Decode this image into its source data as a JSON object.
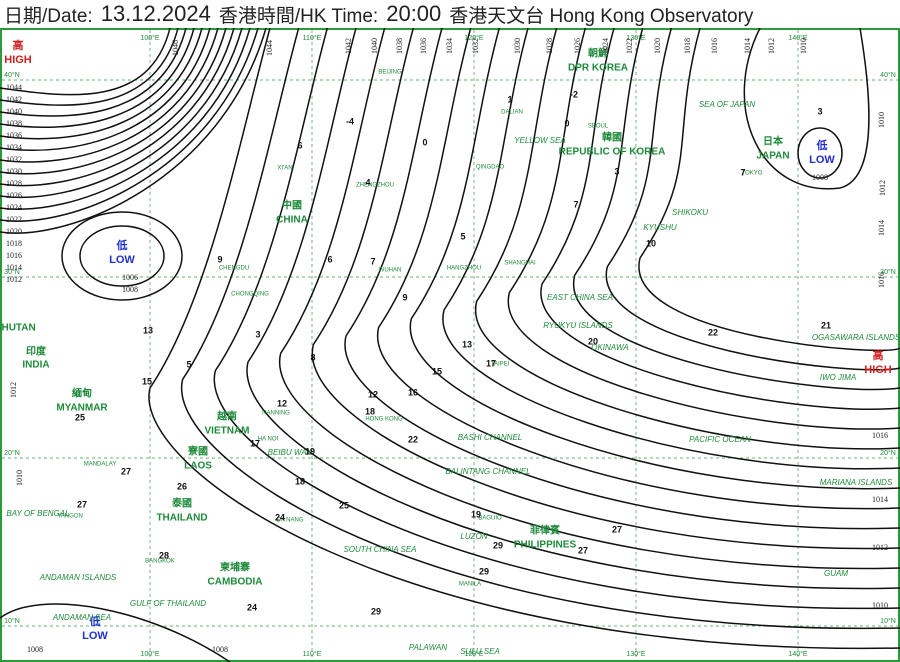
{
  "header": {
    "date_label": "日期/Date:",
    "date": "13.12.2024",
    "time_label": "香港時間/HK Time:",
    "time": "20:00",
    "source": "香港天文台 Hong Kong Observatory"
  },
  "grid_labels": {
    "lon": [
      "100°E",
      "110°E",
      "120°E",
      "130°E",
      "140°E"
    ],
    "lat": [
      "40°N",
      "30°N",
      "20°N",
      "10°N"
    ]
  },
  "pressure_systems": [
    {
      "zh": "高",
      "en": "HIGH"
    },
    {
      "zh": "低",
      "en": "LOW"
    },
    {
      "zh": "低",
      "en": "LOW"
    },
    {
      "zh": "高",
      "en": "HIGH"
    },
    {
      "zh": "低",
      "en": "LOW"
    }
  ],
  "countries": [
    "DPR KOREA",
    "REPUBLIC OF KOREA",
    "JAPAN",
    "CHINA",
    "INDIA",
    "MYANMAR",
    "VIETNAM",
    "LAOS",
    "THAILAND",
    "CAMBODIA",
    "PHILIPPINES",
    "BHUTAN"
  ],
  "countries_zh": [
    "朝鮮",
    "韓國",
    "日本",
    "中國",
    "印度",
    "緬甸",
    "越南",
    "寮國",
    "泰國",
    "柬埔寨",
    "菲律賓"
  ],
  "seas": [
    "YELLOW SEA",
    "EAST CHINA SEA",
    "SEA OF JAPAN",
    "PACIFIC OCEAN",
    "SOUTH CHINA SEA",
    "BAY OF BENGAL",
    "GULF OF THAILAND",
    "BASHI CHANNEL",
    "BALINTANG CHANNEL",
    "SULU SEA",
    "ANDAMAN SEA",
    "ANDAMAN ISLANDS",
    "RYUKYU ISLANDS",
    "OGASAWARA ISLANDS",
    "MARIANA ISLANDS",
    "IWO JIMA",
    "OKINAWA",
    "KYUSHU",
    "SHIKOKU",
    "BEIBU WAN",
    "LUZON",
    "PALAWAN",
    "GUAM"
  ],
  "cities": [
    "BEIJING",
    "SHANGHAI",
    "HONG KONG",
    "TAIPEI",
    "SEOUL",
    "TOKYO",
    "DALIAN",
    "QINGDAO",
    "WUHAN",
    "CHENGDU",
    "CHONGQING",
    "NANNING",
    "HA NOI",
    "BANGKOK",
    "MANILA",
    "YANGON",
    "MANDALAY",
    "ZHENGZHOU",
    "XI'AN",
    "HANGZHOU",
    "DA NANG",
    "BAGUIO"
  ],
  "isobar_labels": [
    "1046",
    "1044",
    "1042",
    "1040",
    "1038",
    "1036",
    "1034",
    "1032",
    "1030",
    "1028",
    "1026",
    "1024",
    "1022",
    "1020",
    "1018",
    "1016",
    "1014",
    "1012",
    "1010",
    "1008",
    "1006",
    "1010",
    "1012",
    "1014",
    "1016",
    "1016",
    "1014",
    "1012",
    "1010",
    "1008",
    "1008",
    "1008",
    "1010",
    "1012",
    "1044",
    "1042",
    "1040",
    "1038",
    "1036",
    "1034",
    "1032",
    "1030",
    "1028",
    "1026",
    "1024",
    "1022",
    "1020",
    "1018",
    "1016",
    "1014",
    "1012",
    "1010"
  ],
  "station_temperatures": [
    -4,
    6,
    4,
    0,
    5,
    6,
    7,
    9,
    9,
    3,
    8,
    13,
    5,
    15,
    12,
    12,
    18,
    16,
    13,
    15,
    17,
    22,
    17,
    19,
    18,
    25,
    27,
    27,
    26,
    24,
    25,
    28,
    24,
    29,
    19,
    29,
    29,
    27,
    27,
    20,
    22,
    21,
    10,
    7,
    3,
    7,
    3,
    -2,
    0,
    1
  ]
}
